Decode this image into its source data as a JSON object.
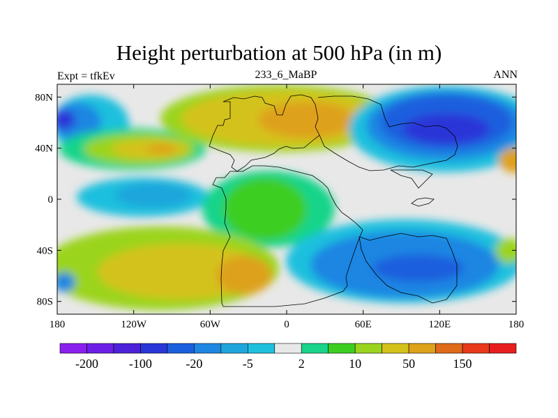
{
  "chart_data": {
    "type": "heatmap",
    "title": "Height perturbation at 500 hPa (in m)",
    "left_label": "Expt = tfkEv",
    "center_label": "233_6_MaBP",
    "right_label": "ANN",
    "x_ticks": [
      {
        "value": -180,
        "label": "180"
      },
      {
        "value": -120,
        "label": "120W"
      },
      {
        "value": -60,
        "label": "60W"
      },
      {
        "value": 0,
        "label": "0"
      },
      {
        "value": 60,
        "label": "60E"
      },
      {
        "value": 120,
        "label": "120E"
      },
      {
        "value": 180,
        "label": "180"
      }
    ],
    "y_ticks": [
      {
        "value": 80,
        "label": "80N"
      },
      {
        "value": 40,
        "label": "40N"
      },
      {
        "value": 0,
        "label": "0"
      },
      {
        "value": -40,
        "label": "40S"
      },
      {
        "value": -80,
        "label": "80S"
      }
    ],
    "xlim": [
      -180,
      180
    ],
    "ylim": [
      -90,
      90
    ],
    "grid": false,
    "colorbar": {
      "colors": [
        "#8a20ee",
        "#6d1fe8",
        "#4d22d8",
        "#2b36d8",
        "#1a5fde",
        "#1f86e2",
        "#1ea6dc",
        "#1ec0de",
        "#e8e8e8",
        "#19d48a",
        "#3dce22",
        "#9bd41f",
        "#d4c21a",
        "#dea11a",
        "#de6a1a",
        "#e8391a",
        "#e81e1e"
      ],
      "labels": [
        "-200",
        "-100",
        "-20",
        "-5",
        "2",
        "10",
        "50",
        "150"
      ],
      "label_positions": [
        1,
        3,
        5,
        7,
        9,
        11,
        13,
        15
      ]
    },
    "anomaly_regions": [
      {
        "sign": "negative",
        "level": -100,
        "lon": [
          -170,
          -135
        ],
        "lat": [
          45,
          85
        ]
      },
      {
        "sign": "positive",
        "level": 50,
        "lon": [
          -60,
          40
        ],
        "lat": [
          45,
          85
        ]
      },
      {
        "sign": "positive",
        "level": 150,
        "lon": [
          -20,
          20
        ],
        "lat": [
          50,
          70
        ]
      },
      {
        "sign": "positive",
        "level": 50,
        "lon": [
          -160,
          -60
        ],
        "lat": [
          25,
          50
        ]
      },
      {
        "sign": "negative",
        "level": -150,
        "lon": [
          60,
          180
        ],
        "lat": [
          30,
          85
        ]
      },
      {
        "sign": "negative",
        "level": -5,
        "lon": [
          -160,
          -75
        ],
        "lat": [
          -10,
          15
        ]
      },
      {
        "sign": "positive",
        "level": 10,
        "lon": [
          -40,
          45
        ],
        "lat": [
          -30,
          15
        ]
      },
      {
        "sign": "positive",
        "level": 50,
        "lon": [
          -170,
          20
        ],
        "lat": [
          -75,
          -25
        ]
      },
      {
        "sign": "positive",
        "level": 150,
        "lon": [
          -45,
          -10
        ],
        "lat": [
          -65,
          -45
        ]
      },
      {
        "sign": "negative",
        "level": -100,
        "lon": [
          30,
          170
        ],
        "lat": [
          -75,
          -25
        ]
      }
    ]
  }
}
